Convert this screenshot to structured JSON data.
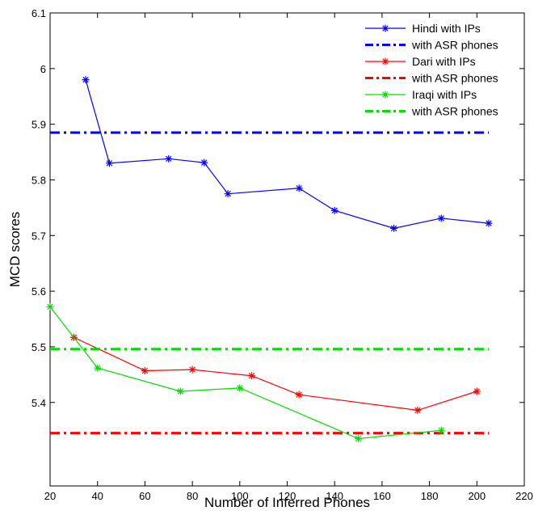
{
  "chart_data": {
    "type": "line",
    "title": "",
    "xlabel": "Number of Inferred Phones",
    "ylabel": "MCD scores",
    "xlim": [
      20,
      220
    ],
    "ylim": [
      5.25,
      6.1
    ],
    "xticks": [
      20,
      40,
      60,
      80,
      100,
      120,
      140,
      160,
      180,
      200,
      220
    ],
    "yticks": [
      5.4,
      5.5,
      5.6,
      5.7,
      5.8,
      5.9,
      6,
      6.1
    ],
    "ytick_labels": [
      "5.4",
      "5.5",
      "5.6",
      "5.7",
      "5.8",
      "5.9",
      "6",
      "6.1"
    ],
    "grid": false,
    "legend_position": "top-right",
    "series": [
      {
        "name": "Hindi with IPs",
        "style": "solid-star",
        "color": "#0000ff",
        "x": [
          35,
          45,
          70,
          85,
          95,
          125,
          140,
          165,
          185,
          205
        ],
        "y": [
          5.98,
          5.83,
          5.838,
          5.831,
          5.775,
          5.785,
          5.745,
          5.713,
          5.731,
          5.722
        ]
      },
      {
        "name": "with ASR phones",
        "style": "dashdot",
        "color": "#0000ff",
        "x": [
          20,
          205
        ],
        "y": [
          5.885,
          5.885
        ]
      },
      {
        "name": "Dari with IPs",
        "style": "solid-star",
        "color": "#ff0000",
        "x": [
          30,
          60,
          80,
          105,
          125,
          175,
          200
        ],
        "y": [
          5.517,
          5.457,
          5.459,
          5.448,
          5.414,
          5.386,
          5.42
        ]
      },
      {
        "name": "with ASR phones",
        "style": "dashdot",
        "color": "#ff0000",
        "x": [
          20,
          205
        ],
        "y": [
          5.345,
          5.345
        ]
      },
      {
        "name": "Iraqi with IPs",
        "style": "solid-star",
        "color": "#00dd00",
        "x": [
          20,
          40,
          75,
          100,
          150,
          185
        ],
        "y": [
          5.572,
          5.462,
          5.42,
          5.426,
          5.335,
          5.35
        ]
      },
      {
        "name": "with ASR phones",
        "style": "dashdot",
        "color": "#00dd00",
        "x": [
          20,
          205
        ],
        "y": [
          5.496,
          5.496
        ]
      }
    ]
  }
}
